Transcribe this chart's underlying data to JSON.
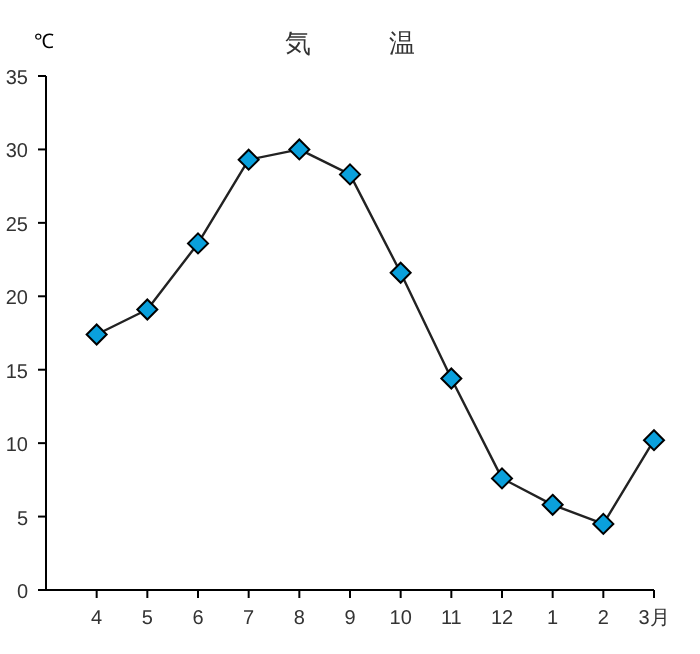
{
  "chart_data": {
    "type": "line",
    "title": "気　　　温",
    "ylabel": "℃",
    "categories": [
      "4",
      "5",
      "6",
      "7",
      "8",
      "9",
      "10",
      "11",
      "12",
      "1",
      "2",
      "3月"
    ],
    "series": [
      {
        "color": "#0aa0dc",
        "values": [
          17.4,
          19.1,
          23.6,
          29.3,
          30.0,
          28.3,
          21.6,
          14.4,
          7.6,
          5.8,
          4.5,
          10.2
        ]
      }
    ],
    "ylim": [
      0,
      35
    ],
    "yticks": [
      0,
      5,
      10,
      15,
      20,
      25,
      30,
      35
    ],
    "marker": "diamond"
  }
}
